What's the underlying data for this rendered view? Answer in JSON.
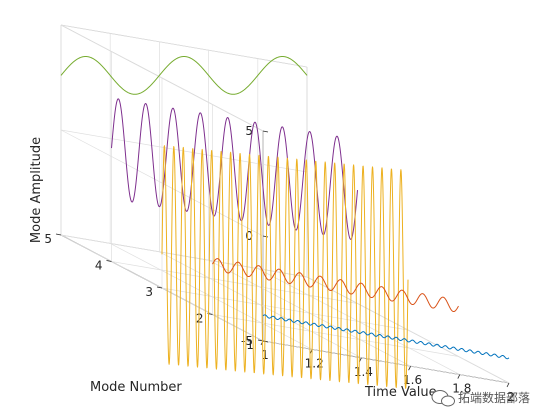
{
  "chart_data": {
    "type": "line",
    "subtype": "3d-waterfall",
    "title": "",
    "xlabel": "Time Value",
    "ylabel": "Mode Number",
    "zlabel": "Mode Amplitude",
    "xlim": [
      1,
      2
    ],
    "ylim": [
      1,
      5
    ],
    "zlim": [
      -5,
      5
    ],
    "xticks": [
      "1",
      "1.2",
      "1.4",
      "1.6",
      "1.8",
      "2"
    ],
    "yticks": [
      "1",
      "2",
      "3",
      "4",
      "5"
    ],
    "zticks": [
      "-5",
      "0",
      "5"
    ],
    "grid": true,
    "series": [
      {
        "mode": 1,
        "color": "#0072BD",
        "t_range": [
          1.0,
          2.0
        ],
        "offset": -3.8,
        "amplitude": 0.06,
        "frequency": 30,
        "slope": 0
      },
      {
        "mode": 2,
        "color": "#D95319",
        "t_range": [
          1.0,
          2.0
        ],
        "offset": -2.6,
        "amplitude": 0.3,
        "frequency": 12,
        "slope": 0
      },
      {
        "mode": 3,
        "color": "#EDB120",
        "t_range": [
          1.0,
          2.0
        ],
        "offset": -3.4,
        "amplitude": 5.2,
        "frequency": 26,
        "slope": 0.8
      },
      {
        "mode": 4,
        "color": "#7E2F8E",
        "t_range": [
          1.0,
          2.0
        ],
        "offset": 0.4,
        "amplitude": 2.4,
        "frequency": 9,
        "slope": 0
      },
      {
        "mode": 5,
        "color": "#77AC30",
        "t_range": [
          1.0,
          2.0
        ],
        "offset": 2.6,
        "amplitude": 0.9,
        "frequency": 2.5,
        "slope": 2.0
      }
    ]
  },
  "watermark": {
    "text": "拓端数据部落",
    "icon": "wechat-icon"
  }
}
